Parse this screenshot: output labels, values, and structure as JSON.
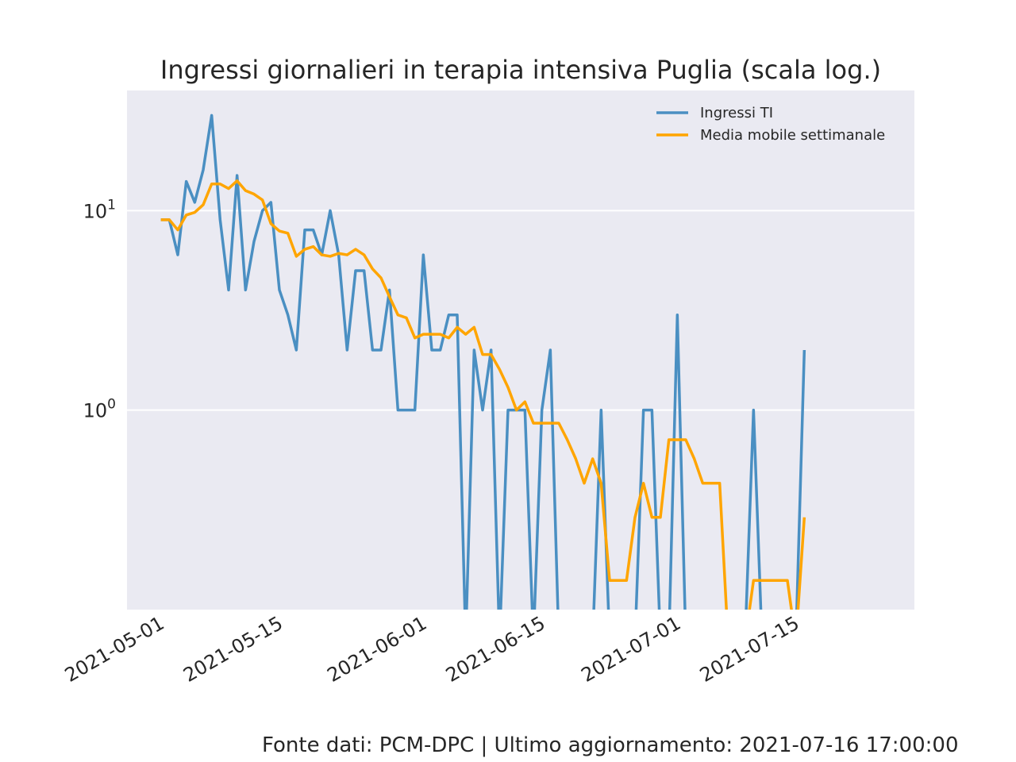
{
  "chart_data": {
    "type": "line",
    "title": "Ingressi giornalieri in terapia intensiva Puglia (scala log.)",
    "xlabel": "",
    "ylabel": "",
    "y_scale": "log",
    "ylim": [
      0.1,
      40
    ],
    "xlim": [
      "2021-04-27",
      "2021-07-29"
    ],
    "x_tick_labels": [
      "2021-05-01",
      "2021-05-15",
      "2021-06-01",
      "2021-06-15",
      "2021-07-01",
      "2021-07-15"
    ],
    "y_ticks": [
      {
        "value": 1,
        "base": "10",
        "exp": "0"
      },
      {
        "value": 10,
        "base": "10",
        "exp": "1"
      }
    ],
    "grid": true,
    "legend_position": "top-right",
    "x": [
      "2021-05-01",
      "2021-05-02",
      "2021-05-03",
      "2021-05-04",
      "2021-05-05",
      "2021-05-06",
      "2021-05-07",
      "2021-05-08",
      "2021-05-09",
      "2021-05-10",
      "2021-05-11",
      "2021-05-12",
      "2021-05-13",
      "2021-05-14",
      "2021-05-15",
      "2021-05-16",
      "2021-05-17",
      "2021-05-18",
      "2021-05-19",
      "2021-05-20",
      "2021-05-21",
      "2021-05-22",
      "2021-05-23",
      "2021-05-24",
      "2021-05-25",
      "2021-05-26",
      "2021-05-27",
      "2021-05-28",
      "2021-05-29",
      "2021-05-30",
      "2021-05-31",
      "2021-06-01",
      "2021-06-02",
      "2021-06-03",
      "2021-06-04",
      "2021-06-05",
      "2021-06-06",
      "2021-06-07",
      "2021-06-08",
      "2021-06-09",
      "2021-06-10",
      "2021-06-11",
      "2021-06-12",
      "2021-06-13",
      "2021-06-14",
      "2021-06-15",
      "2021-06-16",
      "2021-06-17",
      "2021-06-18",
      "2021-06-19",
      "2021-06-20",
      "2021-06-21",
      "2021-06-22",
      "2021-06-23",
      "2021-06-24",
      "2021-06-25",
      "2021-06-26",
      "2021-06-27",
      "2021-06-28",
      "2021-06-29",
      "2021-06-30",
      "2021-07-01",
      "2021-07-02",
      "2021-07-03",
      "2021-07-04",
      "2021-07-05",
      "2021-07-06",
      "2021-07-07",
      "2021-07-08",
      "2021-07-09",
      "2021-07-10",
      "2021-07-11",
      "2021-07-12",
      "2021-07-13",
      "2021-07-14",
      "2021-07-15",
      "2021-07-16"
    ],
    "series": [
      {
        "name": "Ingressi TI",
        "color": "#4a8fc2",
        "values": [
          9,
          9,
          6,
          14,
          11,
          16,
          30,
          9,
          4,
          15,
          4,
          7,
          10,
          11,
          4,
          3,
          2,
          8,
          8,
          6,
          10,
          6,
          2,
          5,
          5,
          2,
          2,
          4,
          1,
          1,
          1,
          6,
          2,
          2,
          3,
          3,
          0,
          2,
          1,
          2,
          0,
          1,
          1,
          1,
          0,
          1,
          2,
          0,
          0,
          0,
          0,
          0,
          1,
          0,
          0,
          0,
          0,
          1,
          1,
          0,
          0,
          3,
          0,
          0,
          0,
          0,
          0,
          0,
          0,
          0,
          1,
          0,
          0,
          0,
          0,
          0,
          2
        ]
      },
      {
        "name": "Media mobile settimanale",
        "color": "#ffa500",
        "values": [
          9,
          9,
          8,
          9.5,
          9.8,
          10.7,
          13.6,
          13.6,
          12.9,
          14.1,
          12.6,
          12.1,
          11.3,
          8.6,
          7.9,
          7.7,
          5.9,
          6.4,
          6.6,
          6,
          5.9,
          6.1,
          6,
          6.4,
          6,
          5.1,
          4.6,
          3.7,
          3,
          2.9,
          2.3,
          2.4,
          2.4,
          2.4,
          2.3,
          2.6,
          2.4,
          2.6,
          1.9,
          1.9,
          1.6,
          1.3,
          1,
          1.1,
          0.86,
          0.86,
          0.86,
          0.86,
          0.71,
          0.57,
          0.43,
          0.57,
          0.43,
          0.14,
          0.14,
          0.14,
          0.29,
          0.43,
          0.29,
          0.29,
          0.71,
          0.71,
          0.71,
          0.57,
          0.43,
          0.43,
          0.43,
          0,
          0,
          0,
          0.14,
          0.14,
          0.14,
          0.14,
          0.14,
          0,
          0.29
        ]
      }
    ]
  },
  "footer": "Fonte dati: PCM-DPC | Ultimo aggiornamento: 2021-07-16 17:00:00"
}
